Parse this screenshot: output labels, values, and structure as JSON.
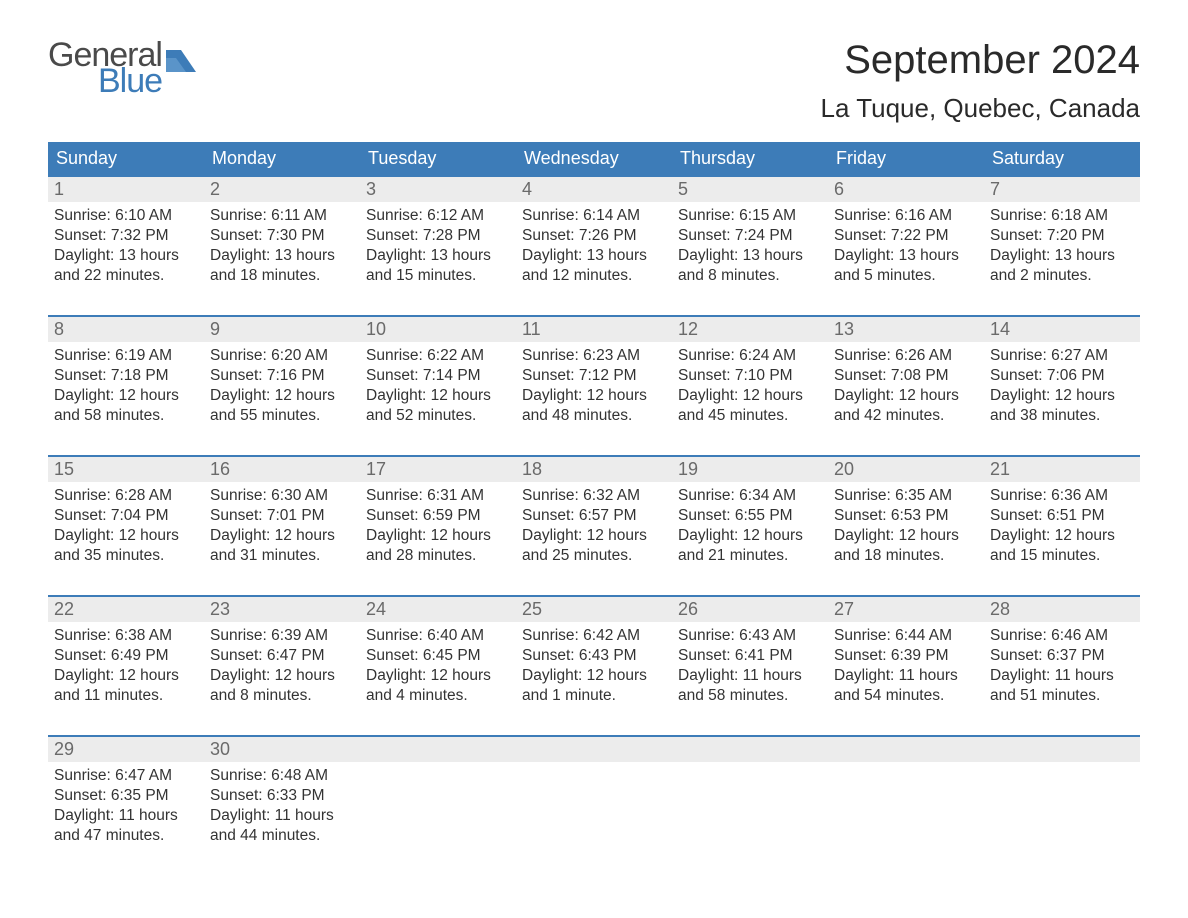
{
  "brand": {
    "general": "General",
    "blue": "Blue",
    "general_color": "#4a4a4a",
    "blue_color": "#3d7cb8",
    "shape_color": "#3d7cb8"
  },
  "title": {
    "month": "September 2024",
    "location": "La Tuque, Quebec, Canada",
    "month_fontsize": 40,
    "location_fontsize": 26,
    "text_color": "#2a2a2a"
  },
  "theme": {
    "header_bg": "#3d7cb8",
    "header_text": "#ffffff",
    "week_border": "#3d7cb8",
    "daynum_bg": "#ececec",
    "daynum_color": "#6a6a6a",
    "body_color": "#333333",
    "page_bg": "#ffffff",
    "body_fontsize": 15.5,
    "dow_fontsize": 18
  },
  "dows": [
    "Sunday",
    "Monday",
    "Tuesday",
    "Wednesday",
    "Thursday",
    "Friday",
    "Saturday"
  ],
  "weeks": [
    [
      {
        "n": "1",
        "sunrise": "Sunrise: 6:10 AM",
        "sunset": "Sunset: 7:32 PM",
        "d1": "Daylight: 13 hours",
        "d2": "and 22 minutes."
      },
      {
        "n": "2",
        "sunrise": "Sunrise: 6:11 AM",
        "sunset": "Sunset: 7:30 PM",
        "d1": "Daylight: 13 hours",
        "d2": "and 18 minutes."
      },
      {
        "n": "3",
        "sunrise": "Sunrise: 6:12 AM",
        "sunset": "Sunset: 7:28 PM",
        "d1": "Daylight: 13 hours",
        "d2": "and 15 minutes."
      },
      {
        "n": "4",
        "sunrise": "Sunrise: 6:14 AM",
        "sunset": "Sunset: 7:26 PM",
        "d1": "Daylight: 13 hours",
        "d2": "and 12 minutes."
      },
      {
        "n": "5",
        "sunrise": "Sunrise: 6:15 AM",
        "sunset": "Sunset: 7:24 PM",
        "d1": "Daylight: 13 hours",
        "d2": "and 8 minutes."
      },
      {
        "n": "6",
        "sunrise": "Sunrise: 6:16 AM",
        "sunset": "Sunset: 7:22 PM",
        "d1": "Daylight: 13 hours",
        "d2": "and 5 minutes."
      },
      {
        "n": "7",
        "sunrise": "Sunrise: 6:18 AM",
        "sunset": "Sunset: 7:20 PM",
        "d1": "Daylight: 13 hours",
        "d2": "and 2 minutes."
      }
    ],
    [
      {
        "n": "8",
        "sunrise": "Sunrise: 6:19 AM",
        "sunset": "Sunset: 7:18 PM",
        "d1": "Daylight: 12 hours",
        "d2": "and 58 minutes."
      },
      {
        "n": "9",
        "sunrise": "Sunrise: 6:20 AM",
        "sunset": "Sunset: 7:16 PM",
        "d1": "Daylight: 12 hours",
        "d2": "and 55 minutes."
      },
      {
        "n": "10",
        "sunrise": "Sunrise: 6:22 AM",
        "sunset": "Sunset: 7:14 PM",
        "d1": "Daylight: 12 hours",
        "d2": "and 52 minutes."
      },
      {
        "n": "11",
        "sunrise": "Sunrise: 6:23 AM",
        "sunset": "Sunset: 7:12 PM",
        "d1": "Daylight: 12 hours",
        "d2": "and 48 minutes."
      },
      {
        "n": "12",
        "sunrise": "Sunrise: 6:24 AM",
        "sunset": "Sunset: 7:10 PM",
        "d1": "Daylight: 12 hours",
        "d2": "and 45 minutes."
      },
      {
        "n": "13",
        "sunrise": "Sunrise: 6:26 AM",
        "sunset": "Sunset: 7:08 PM",
        "d1": "Daylight: 12 hours",
        "d2": "and 42 minutes."
      },
      {
        "n": "14",
        "sunrise": "Sunrise: 6:27 AM",
        "sunset": "Sunset: 7:06 PM",
        "d1": "Daylight: 12 hours",
        "d2": "and 38 minutes."
      }
    ],
    [
      {
        "n": "15",
        "sunrise": "Sunrise: 6:28 AM",
        "sunset": "Sunset: 7:04 PM",
        "d1": "Daylight: 12 hours",
        "d2": "and 35 minutes."
      },
      {
        "n": "16",
        "sunrise": "Sunrise: 6:30 AM",
        "sunset": "Sunset: 7:01 PM",
        "d1": "Daylight: 12 hours",
        "d2": "and 31 minutes."
      },
      {
        "n": "17",
        "sunrise": "Sunrise: 6:31 AM",
        "sunset": "Sunset: 6:59 PM",
        "d1": "Daylight: 12 hours",
        "d2": "and 28 minutes."
      },
      {
        "n": "18",
        "sunrise": "Sunrise: 6:32 AM",
        "sunset": "Sunset: 6:57 PM",
        "d1": "Daylight: 12 hours",
        "d2": "and 25 minutes."
      },
      {
        "n": "19",
        "sunrise": "Sunrise: 6:34 AM",
        "sunset": "Sunset: 6:55 PM",
        "d1": "Daylight: 12 hours",
        "d2": "and 21 minutes."
      },
      {
        "n": "20",
        "sunrise": "Sunrise: 6:35 AM",
        "sunset": "Sunset: 6:53 PM",
        "d1": "Daylight: 12 hours",
        "d2": "and 18 minutes."
      },
      {
        "n": "21",
        "sunrise": "Sunrise: 6:36 AM",
        "sunset": "Sunset: 6:51 PM",
        "d1": "Daylight: 12 hours",
        "d2": "and 15 minutes."
      }
    ],
    [
      {
        "n": "22",
        "sunrise": "Sunrise: 6:38 AM",
        "sunset": "Sunset: 6:49 PM",
        "d1": "Daylight: 12 hours",
        "d2": "and 11 minutes."
      },
      {
        "n": "23",
        "sunrise": "Sunrise: 6:39 AM",
        "sunset": "Sunset: 6:47 PM",
        "d1": "Daylight: 12 hours",
        "d2": "and 8 minutes."
      },
      {
        "n": "24",
        "sunrise": "Sunrise: 6:40 AM",
        "sunset": "Sunset: 6:45 PM",
        "d1": "Daylight: 12 hours",
        "d2": "and 4 minutes."
      },
      {
        "n": "25",
        "sunrise": "Sunrise: 6:42 AM",
        "sunset": "Sunset: 6:43 PM",
        "d1": "Daylight: 12 hours",
        "d2": "and 1 minute."
      },
      {
        "n": "26",
        "sunrise": "Sunrise: 6:43 AM",
        "sunset": "Sunset: 6:41 PM",
        "d1": "Daylight: 11 hours",
        "d2": "and 58 minutes."
      },
      {
        "n": "27",
        "sunrise": "Sunrise: 6:44 AM",
        "sunset": "Sunset: 6:39 PM",
        "d1": "Daylight: 11 hours",
        "d2": "and 54 minutes."
      },
      {
        "n": "28",
        "sunrise": "Sunrise: 6:46 AM",
        "sunset": "Sunset: 6:37 PM",
        "d1": "Daylight: 11 hours",
        "d2": "and 51 minutes."
      }
    ],
    [
      {
        "n": "29",
        "sunrise": "Sunrise: 6:47 AM",
        "sunset": "Sunset: 6:35 PM",
        "d1": "Daylight: 11 hours",
        "d2": "and 47 minutes."
      },
      {
        "n": "30",
        "sunrise": "Sunrise: 6:48 AM",
        "sunset": "Sunset: 6:33 PM",
        "d1": "Daylight: 11 hours",
        "d2": "and 44 minutes."
      },
      {
        "n": "",
        "sunrise": "",
        "sunset": "",
        "d1": "",
        "d2": ""
      },
      {
        "n": "",
        "sunrise": "",
        "sunset": "",
        "d1": "",
        "d2": ""
      },
      {
        "n": "",
        "sunrise": "",
        "sunset": "",
        "d1": "",
        "d2": ""
      },
      {
        "n": "",
        "sunrise": "",
        "sunset": "",
        "d1": "",
        "d2": ""
      },
      {
        "n": "",
        "sunrise": "",
        "sunset": "",
        "d1": "",
        "d2": ""
      }
    ]
  ]
}
